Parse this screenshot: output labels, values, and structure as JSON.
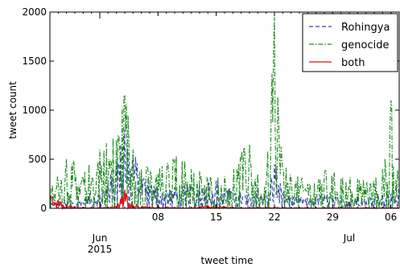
{
  "chart_data": {
    "type": "line",
    "xlabel": "tweet time",
    "ylabel": "tweet count",
    "ylim": [
      0,
      2000
    ],
    "x_range": [
      "2015-05-26",
      "2015-07-07"
    ],
    "y_ticks": [
      {
        "value": 0,
        "label": "0"
      },
      {
        "value": 500,
        "label": "500"
      },
      {
        "value": 1000,
        "label": "1000"
      },
      {
        "value": 1500,
        "label": "1500"
      },
      {
        "value": 2000,
        "label": "2000"
      }
    ],
    "x_minor_ticks": [
      {
        "date": "2015-06-08",
        "label": "08"
      },
      {
        "date": "2015-06-15",
        "label": "15"
      },
      {
        "date": "2015-06-22",
        "label": "22"
      },
      {
        "date": "2015-06-29",
        "label": "29"
      },
      {
        "date": "2015-07-06",
        "label": "06"
      }
    ],
    "x_major_ticks": [
      {
        "date": "2015-06-01",
        "label": "Jun",
        "sublabel": "2015"
      },
      {
        "date": "2015-07-01",
        "label": "Jul",
        "sublabel": ""
      }
    ],
    "legend_position": "top-right",
    "grid": false,
    "series": [
      {
        "name": "Rohingya",
        "color": "#3040b0",
        "style": "dashed",
        "x": [
          "2015-05-26",
          "2015-05-28",
          "2015-05-30",
          "2015-06-01",
          "2015-06-02",
          "2015-06-03",
          "2015-06-04",
          "2015-06-05",
          "2015-06-06",
          "2015-06-08",
          "2015-06-10",
          "2015-06-12",
          "2015-06-13",
          "2015-06-15",
          "2015-06-17",
          "2015-06-19",
          "2015-06-20",
          "2015-06-21",
          "2015-06-22",
          "2015-06-23",
          "2015-06-24",
          "2015-06-26",
          "2015-06-28",
          "2015-06-30",
          "2015-07-02",
          "2015-07-04",
          "2015-07-06",
          "2015-07-07"
        ],
        "values": [
          40,
          60,
          70,
          150,
          250,
          450,
          800,
          550,
          350,
          200,
          180,
          200,
          250,
          280,
          150,
          120,
          200,
          150,
          450,
          150,
          100,
          80,
          120,
          80,
          120,
          100,
          150,
          250
        ]
      },
      {
        "name": "genocide",
        "color": "#1a8a1a",
        "style": "dashdot",
        "x": [
          "2015-05-26",
          "2015-05-27",
          "2015-05-28",
          "2015-05-30",
          "2015-06-01",
          "2015-06-03",
          "2015-06-04",
          "2015-06-05",
          "2015-06-06",
          "2015-06-08",
          "2015-06-10",
          "2015-06-12",
          "2015-06-14",
          "2015-06-16",
          "2015-06-18",
          "2015-06-19",
          "2015-06-20",
          "2015-06-21",
          "2015-06-22",
          "2015-06-23",
          "2015-06-24",
          "2015-06-26",
          "2015-06-28",
          "2015-06-30",
          "2015-07-02",
          "2015-07-04",
          "2015-07-05",
          "2015-07-06",
          "2015-07-07"
        ],
        "values": [
          200,
          300,
          500,
          300,
          600,
          700,
          1150,
          600,
          400,
          350,
          500,
          400,
          300,
          300,
          500,
          650,
          300,
          250,
          1950,
          400,
          300,
          250,
          350,
          300,
          300,
          250,
          400,
          1100,
          300
        ]
      },
      {
        "name": "both",
        "color": "#e01010",
        "style": "solid",
        "x": [
          "2015-05-26",
          "2015-05-27",
          "2015-05-28",
          "2015-05-30",
          "2015-06-01",
          "2015-06-03",
          "2015-06-04",
          "2015-06-05",
          "2015-06-08",
          "2015-06-12",
          "2015-06-14",
          "2015-06-18",
          "2015-06-22",
          "2015-06-26",
          "2015-06-30",
          "2015-07-04",
          "2015-07-07"
        ],
        "values": [
          130,
          80,
          30,
          10,
          5,
          20,
          190,
          30,
          10,
          5,
          30,
          5,
          10,
          5,
          5,
          5,
          5
        ]
      }
    ]
  }
}
